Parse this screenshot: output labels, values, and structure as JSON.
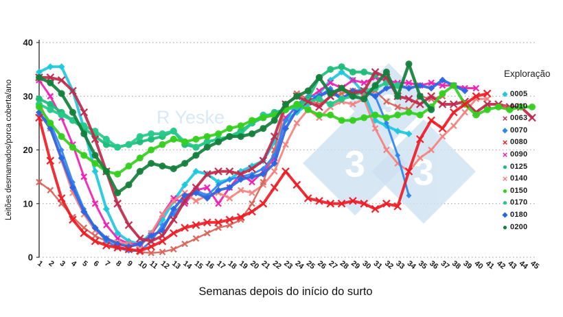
{
  "watermarks": {
    "author_text": "R Yeske",
    "logo_digit": "3",
    "logo_color": "#cfe2f2"
  },
  "chart_data": {
    "type": "line",
    "title": "",
    "xlabel": "Semanas depois do início do surto",
    "ylabel": "Leitões desmamados/porca coberta/ano",
    "legend_title": "Exploração",
    "ylim": [
      0,
      40
    ],
    "yticks": [
      0,
      10,
      20,
      30,
      40
    ],
    "grid": "dotted-horizontal",
    "legend_position": "right",
    "x": [
      1,
      2,
      3,
      4,
      5,
      6,
      7,
      8,
      9,
      10,
      11,
      12,
      13,
      14,
      15,
      16,
      17,
      18,
      19,
      20,
      21,
      22,
      23,
      24,
      25,
      26,
      27,
      28,
      29,
      30,
      31,
      32,
      33,
      34,
      35,
      36,
      37,
      38,
      39,
      40,
      41,
      42,
      43,
      44,
      45
    ],
    "series": [
      {
        "name": "0005",
        "color": "#1FC8DC",
        "marker": "diamond",
        "width": 4,
        "values": [
          34.5,
          35.5,
          35.5,
          31,
          24,
          16,
          9,
          4.5,
          3,
          2.5,
          4.5,
          7,
          10.5,
          13.5,
          16,
          15.5,
          14,
          14.5,
          16,
          17,
          18,
          21.5,
          25.5,
          27,
          28.5,
          30.5,
          33,
          34.5,
          33,
          30.5,
          25.5,
          24.5,
          23.5,
          23,
          null,
          null,
          null,
          null,
          null,
          null,
          null,
          null,
          null,
          null,
          null
        ]
      },
      {
        "name": "0010",
        "color": "#D96459",
        "marker": "x",
        "width": 2.5,
        "values": [
          14,
          12.5,
          10,
          7.5,
          5.5,
          4,
          3,
          2,
          1.5,
          1,
          0.8,
          1,
          1.5,
          2.5,
          3.5,
          4.5,
          5.5,
          6,
          7,
          10,
          14,
          20,
          28,
          30.5,
          29.5,
          28.5,
          30,
          30.5,
          31,
          30.5,
          31,
          29,
          28,
          27.5,
          30,
          29.5,
          30,
          null,
          null,
          null,
          null,
          null,
          null,
          null,
          null
        ]
      },
      {
        "name": "0063",
        "color": "#BF2A4C",
        "marker": "x",
        "width": 4,
        "values": [
          33.5,
          33.5,
          33,
          31,
          27,
          22,
          16,
          10,
          6,
          3.5,
          3,
          4,
          7,
          10.5,
          13,
          15.5,
          16,
          16,
          15.5,
          16.5,
          18,
          22.5,
          28.5,
          30,
          29,
          28,
          30,
          31.5,
          30.5,
          31,
          34.5,
          33.5,
          30,
          29.5,
          28.5,
          30,
          28.5,
          28.5,
          29,
          27,
          28.5,
          28.5,
          28,
          28,
          26
        ]
      },
      {
        "name": "0070",
        "color": "#2E86F0",
        "marker": "diamond",
        "width": 3,
        "values": [
          26.5,
          25,
          20,
          14,
          9,
          5.5,
          3,
          1.8,
          1.2,
          1.2,
          3,
          6,
          8,
          10.5,
          12.5,
          11.5,
          13.5,
          14.5,
          15,
          15.5,
          16.5,
          19,
          25.5,
          28.5,
          30,
          30,
          31.5,
          29.5,
          30.5,
          31,
          30,
          25,
          19,
          11.5,
          null,
          null,
          null,
          null,
          null,
          null,
          null,
          null,
          null,
          null,
          null
        ]
      },
      {
        "name": "0080",
        "color": "#EE1C25",
        "marker": "x",
        "width": 4,
        "values": [
          26,
          18,
          11,
          7,
          4.5,
          3,
          2.2,
          1.8,
          1.5,
          1.2,
          2,
          3,
          4.5,
          5.5,
          6,
          6.5,
          6.5,
          7,
          7.5,
          8.5,
          10,
          13,
          16,
          13.5,
          11,
          10.5,
          10,
          10,
          10.5,
          10,
          9,
          10,
          9.5,
          16,
          22,
          25.5,
          24,
          27,
          28.5,
          30,
          30.5,
          null,
          null,
          null,
          null
        ]
      },
      {
        "name": "0090",
        "color": "#F01EB4",
        "marker": "x",
        "width": 3,
        "values": [
          33,
          30,
          26,
          21,
          15,
          10,
          6,
          3.5,
          2.5,
          2.5,
          4,
          8,
          11,
          10,
          12.5,
          13,
          10,
          13,
          15.5,
          14,
          16,
          18.5,
          26,
          28,
          29.5,
          31,
          32.5,
          31.5,
          33,
          32.5,
          33.5,
          33,
          32.5,
          32.5,
          32,
          32.5,
          32,
          32,
          31.5,
          31.5,
          null,
          null,
          null,
          null,
          null
        ]
      },
      {
        "name": "0125",
        "color": "#1FBD7A",
        "marker": "circle",
        "width": 4,
        "values": [
          29.5,
          28.5,
          27,
          25.5,
          24,
          22.5,
          21,
          20.5,
          21,
          21.5,
          22,
          22.5,
          23.5,
          21,
          20.5,
          21.5,
          22,
          22.5,
          23.5,
          25,
          26,
          27,
          27.5,
          28.5,
          29.5,
          33.5,
          35,
          35.5,
          34.5,
          34.5,
          34,
          null,
          null,
          null,
          null,
          null,
          null,
          null,
          null,
          null,
          null,
          null,
          null,
          null,
          null
        ]
      },
      {
        "name": "0140",
        "color": "#F4827E",
        "marker": "x",
        "width": 3,
        "values": [
          29,
          24,
          18,
          12,
          8,
          5,
          3.5,
          2.8,
          2.5,
          2,
          4.5,
          8,
          10.5,
          12,
          10.5,
          11.5,
          12,
          11,
          12.5,
          12,
          13.5,
          16,
          21,
          25,
          27.5,
          26,
          28,
          29,
          28.5,
          29.5,
          24,
          20,
          17.5,
          16,
          18.5,
          20,
          22.5,
          24.5,
          27,
          29.5,
          29.5,
          null,
          null,
          null,
          null
        ]
      },
      {
        "name": "0150",
        "color": "#35CF1F",
        "marker": "circle",
        "width": 4,
        "values": [
          28,
          25,
          22.5,
          20.5,
          19,
          17.5,
          16,
          15.5,
          17,
          18.5,
          20,
          21,
          22,
          21.5,
          22,
          22.5,
          23,
          24,
          24.5,
          25.5,
          26,
          26.5,
          27.5,
          28.5,
          27.5,
          26.5,
          26.5,
          25.5,
          25.5,
          26,
          26.5,
          26,
          26.5,
          27,
          26.5,
          28,
          30.5,
          32,
          28.5,
          26.5,
          27.5,
          28,
          27.5,
          28,
          28
        ]
      },
      {
        "name": "0170",
        "color": "#27C98A",
        "marker": "circle",
        "width": 4,
        "values": [
          28.5,
          27.5,
          26.5,
          25.5,
          24.5,
          23.5,
          22,
          20.5,
          21,
          22.5,
          23,
          23,
          23.5,
          21.5,
          20.5,
          21.5,
          22,
          22.5,
          23,
          25,
          26.5,
          26.5,
          27.5,
          28,
          29,
          29.5,
          28.5,
          29.5,
          30,
          31,
          31.5,
          32.5,
          32,
          null,
          null,
          null,
          null,
          null,
          null,
          null,
          null,
          null,
          null,
          null,
          null
        ]
      },
      {
        "name": "0180",
        "color": "#2B66E0",
        "marker": "diamond",
        "width": 4,
        "values": [
          27,
          24,
          18.5,
          13,
          8.5,
          5.5,
          3.5,
          2.5,
          2,
          2.5,
          4,
          5,
          9,
          11.5,
          12,
          11,
          12.5,
          13,
          14.5,
          15,
          15.5,
          17.5,
          24,
          27.5,
          29,
          30,
          31,
          29.5,
          31,
          31,
          30,
          31.5,
          32,
          31.5,
          32,
          31.5,
          33,
          32,
          31,
          null,
          null,
          null,
          null,
          null,
          null
        ]
      },
      {
        "name": "0200",
        "color": "#157F3C",
        "marker": "circle",
        "width": 4.5,
        "values": [
          33.5,
          32.5,
          30.5,
          27,
          23,
          19,
          16,
          12,
          13.5,
          16,
          17.5,
          17,
          16.5,
          17.5,
          19,
          20.5,
          21.5,
          22.5,
          22.5,
          23,
          24,
          25.5,
          28.5,
          30,
          31,
          33.5,
          30.5,
          31.5,
          30,
          29.5,
          32,
          34.5,
          30,
          36,
          30,
          27.5,
          null,
          null,
          null,
          null,
          null,
          null,
          null,
          null,
          null
        ]
      }
    ]
  }
}
